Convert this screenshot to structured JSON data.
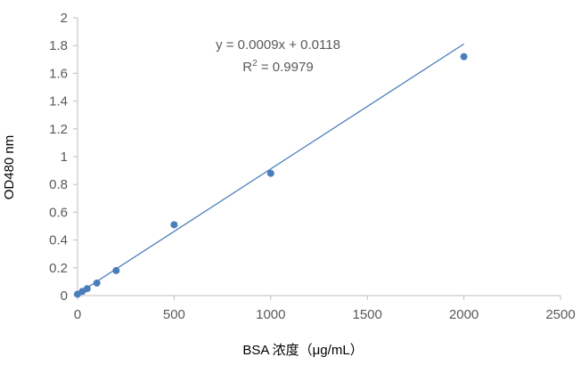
{
  "chart_data": {
    "type": "scatter",
    "xlabel": "BSA 浓度（μg/mL）",
    "ylabel": "OD480 nm",
    "xlim": [
      0,
      2500
    ],
    "ylim": [
      0,
      2
    ],
    "x_ticks": [
      "0",
      "500",
      "1000",
      "1500",
      "2000",
      "2500"
    ],
    "y_ticks": [
      "0",
      "0.2",
      "0.4",
      "0.6",
      "0.8",
      "1",
      "1.2",
      "1.4",
      "1.6",
      "1.8",
      "2"
    ],
    "grid": false,
    "points": [
      {
        "x": 0,
        "y": 0.01
      },
      {
        "x": 25,
        "y": 0.03
      },
      {
        "x": 50,
        "y": 0.05
      },
      {
        "x": 100,
        "y": 0.09
      },
      {
        "x": 200,
        "y": 0.18
      },
      {
        "x": 500,
        "y": 0.51
      },
      {
        "x": 1000,
        "y": 0.88
      },
      {
        "x": 2000,
        "y": 1.72
      }
    ],
    "trendline": {
      "equation": "y = 0.0009x + 0.0118",
      "r2_label": "R",
      "r2_superscript": "2",
      "r2_value": " = 0.9979",
      "slope": 0.0009,
      "intercept": 0.0118,
      "x_range": [
        0,
        2000
      ]
    },
    "colors": {
      "series": "#4A7EBB",
      "axis": "#BFBFBF"
    }
  }
}
